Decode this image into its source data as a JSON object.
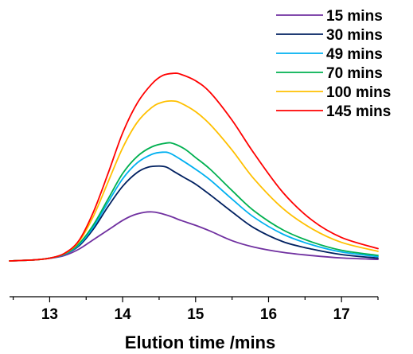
{
  "chart_data": {
    "type": "line",
    "xlabel": "Elution time /mins",
    "ylabel": "",
    "xlim": [
      12.45,
      17.5
    ],
    "ylim": [
      0,
      1.0
    ],
    "xticks": [
      13,
      14,
      15,
      16,
      17
    ],
    "xtick_labels": [
      "13",
      "14",
      "15",
      "16",
      "17"
    ],
    "yaxis_visible": false,
    "grid": false,
    "legend_position": "top-right",
    "series": [
      {
        "name": "15 mins",
        "color": "#7030a0",
        "x": [
          12.45,
          12.8,
          13.0,
          13.2,
          13.4,
          13.6,
          13.8,
          14.0,
          14.15,
          14.3,
          14.4,
          14.5,
          14.65,
          14.8,
          15.0,
          15.2,
          15.5,
          15.8,
          16.2,
          16.6,
          17.0,
          17.5
        ],
        "y": [
          0.0,
          0.005,
          0.012,
          0.025,
          0.055,
          0.1,
          0.145,
          0.19,
          0.215,
          0.228,
          0.23,
          0.225,
          0.21,
          0.19,
          0.167,
          0.14,
          0.095,
          0.065,
          0.04,
          0.025,
          0.014,
          0.007
        ]
      },
      {
        "name": "30 mins",
        "color": "#002060",
        "x": [
          12.45,
          12.8,
          13.0,
          13.2,
          13.4,
          13.6,
          13.8,
          14.0,
          14.2,
          14.35,
          14.5,
          14.6,
          14.7,
          14.85,
          15.0,
          15.2,
          15.5,
          15.8,
          16.2,
          16.6,
          17.0,
          17.5
        ],
        "y": [
          0.0,
          0.005,
          0.013,
          0.03,
          0.07,
          0.15,
          0.255,
          0.35,
          0.415,
          0.44,
          0.445,
          0.44,
          0.42,
          0.39,
          0.36,
          0.31,
          0.23,
          0.155,
          0.09,
          0.055,
          0.03,
          0.013
        ]
      },
      {
        "name": "49 mins",
        "color": "#00b0f0",
        "x": [
          12.45,
          12.8,
          13.0,
          13.2,
          13.4,
          13.6,
          13.8,
          14.0,
          14.2,
          14.4,
          14.55,
          14.65,
          14.8,
          15.0,
          15.2,
          15.5,
          15.8,
          16.2,
          16.6,
          17.0,
          17.5
        ],
        "y": [
          0.0,
          0.005,
          0.013,
          0.03,
          0.075,
          0.16,
          0.275,
          0.385,
          0.46,
          0.5,
          0.51,
          0.505,
          0.475,
          0.43,
          0.38,
          0.29,
          0.205,
          0.125,
          0.075,
          0.042,
          0.02
        ]
      },
      {
        "name": "70 mins",
        "color": "#00b050",
        "x": [
          12.45,
          12.8,
          13.0,
          13.2,
          13.4,
          13.6,
          13.8,
          14.0,
          14.2,
          14.4,
          14.6,
          14.7,
          14.85,
          15.0,
          15.2,
          15.5,
          15.8,
          16.2,
          16.6,
          17.0,
          17.5
        ],
        "y": [
          0.0,
          0.005,
          0.013,
          0.032,
          0.08,
          0.17,
          0.29,
          0.41,
          0.49,
          0.535,
          0.553,
          0.55,
          0.525,
          0.485,
          0.43,
          0.33,
          0.235,
          0.145,
          0.088,
          0.05,
          0.026
        ]
      },
      {
        "name": "100 mins",
        "color": "#ffc000",
        "x": [
          12.45,
          12.8,
          13.0,
          13.2,
          13.4,
          13.6,
          13.8,
          14.0,
          14.2,
          14.4,
          14.55,
          14.7,
          14.8,
          15.0,
          15.2,
          15.5,
          15.8,
          16.2,
          16.6,
          17.0,
          17.5
        ],
        "y": [
          0.0,
          0.005,
          0.013,
          0.034,
          0.09,
          0.21,
          0.37,
          0.53,
          0.65,
          0.72,
          0.745,
          0.75,
          0.74,
          0.7,
          0.64,
          0.52,
          0.385,
          0.245,
          0.15,
          0.087,
          0.045
        ]
      },
      {
        "name": "145 mins",
        "color": "#ff0000",
        "x": [
          12.45,
          12.8,
          13.0,
          13.2,
          13.4,
          13.6,
          13.8,
          14.0,
          14.2,
          14.4,
          14.55,
          14.7,
          14.8,
          15.0,
          15.2,
          15.5,
          15.8,
          16.2,
          16.6,
          17.0,
          17.5
        ],
        "y": [
          0.0,
          0.005,
          0.013,
          0.035,
          0.095,
          0.23,
          0.41,
          0.6,
          0.74,
          0.83,
          0.87,
          0.88,
          0.875,
          0.845,
          0.79,
          0.66,
          0.505,
          0.32,
          0.19,
          0.11,
          0.058
        ]
      }
    ]
  }
}
